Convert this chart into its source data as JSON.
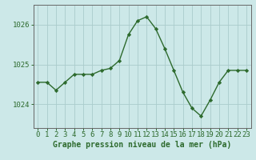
{
  "x": [
    0,
    1,
    2,
    3,
    4,
    5,
    6,
    7,
    8,
    9,
    10,
    11,
    12,
    13,
    14,
    15,
    16,
    17,
    18,
    19,
    20,
    21,
    22,
    23
  ],
  "y": [
    1024.55,
    1024.55,
    1024.35,
    1024.55,
    1024.75,
    1024.75,
    1024.75,
    1024.85,
    1024.9,
    1025.1,
    1025.75,
    1026.1,
    1026.2,
    1025.9,
    1025.4,
    1024.85,
    1024.3,
    1023.9,
    1023.7,
    1024.1,
    1024.55,
    1024.85,
    1024.85,
    1024.85
  ],
  "xlabel": "Graphe pression niveau de la mer (hPa)",
  "ylim": [
    1023.4,
    1026.5
  ],
  "yticks": [
    1024,
    1025,
    1026
  ],
  "xticks": [
    0,
    1,
    2,
    3,
    4,
    5,
    6,
    7,
    8,
    9,
    10,
    11,
    12,
    13,
    14,
    15,
    16,
    17,
    18,
    19,
    20,
    21,
    22,
    23
  ],
  "line_color": "#2d6a2d",
  "marker_color": "#2d6a2d",
  "bg_color": "#cce8e8",
  "grid_color": "#aacccc",
  "axis_color": "#666666",
  "xlabel_fontsize": 7,
  "tick_fontsize": 6.5
}
